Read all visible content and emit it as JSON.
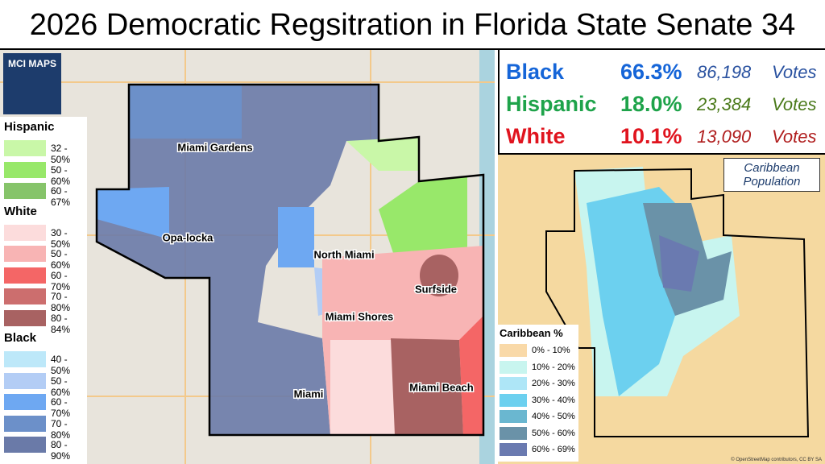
{
  "title": "2026 Democratic Regsitration in Florida State Senate 34",
  "logo": "MCI MAPS",
  "legend": {
    "groups": [
      {
        "name": "Hispanic",
        "items": [
          {
            "label": "32 - 50%",
            "color": "#c9f7a8"
          },
          {
            "label": "50 - 60%",
            "color": "#98e86a"
          },
          {
            "label": "60 - 67%",
            "color": "#86c46a"
          }
        ]
      },
      {
        "name": "White",
        "items": [
          {
            "label": "30 - 50%",
            "color": "#fcdcdc"
          },
          {
            "label": "50 - 60%",
            "color": "#f8b4b4"
          },
          {
            "label": "60 - 70%",
            "color": "#f46666"
          },
          {
            "label": "70 - 80%",
            "color": "#cc6e6e"
          },
          {
            "label": "80 - 84%",
            "color": "#a86262"
          }
        ]
      },
      {
        "name": "Black",
        "items": [
          {
            "label": "40 - 50%",
            "color": "#bde8f9"
          },
          {
            "label": "50 - 60%",
            "color": "#b3cdf5"
          },
          {
            "label": "60 - 70%",
            "color": "#6ea8f2"
          },
          {
            "label": "70 - 80%",
            "color": "#6c90c9"
          },
          {
            "label": "80 - 90%",
            "color": "#6a7aa8"
          }
        ]
      }
    ]
  },
  "stats": [
    {
      "group": "Black",
      "percent": "66.3%",
      "votes": "86,198",
      "unit": "Votes",
      "color": "#1565d8",
      "votes_color": "#2a52a0"
    },
    {
      "group": "Hispanic",
      "percent": "18.0%",
      "votes": "23,384",
      "unit": "Votes",
      "color": "#1ea34a",
      "votes_color": "#4a7a1a"
    },
    {
      "group": "White",
      "percent": "10.1%",
      "votes": "13,090",
      "unit": "Votes",
      "color": "#e0141e",
      "votes_color": "#b01e1e"
    }
  ],
  "cities": [
    "Miami Gardens",
    "Opa-locka",
    "North Miami",
    "Surfside",
    "Miami Shores",
    "Miami",
    "Miami Beach"
  ],
  "inset": {
    "title": "Caribbean Population",
    "legend_title": "Caribbean %",
    "items": [
      {
        "label": "0% - 10%",
        "color": "#f9d9a8"
      },
      {
        "label": "10% - 20%",
        "color": "#c8f5ef"
      },
      {
        "label": "20% - 30%",
        "color": "#aee6f7"
      },
      {
        "label": "30% - 40%",
        "color": "#6cd0ef"
      },
      {
        "label": "40% - 50%",
        "color": "#6ab7d0"
      },
      {
        "label": "50% - 60%",
        "color": "#6a92a8"
      },
      {
        "label": "60% - 69%",
        "color": "#6a7ab0"
      }
    ],
    "attribution": "© OpenStreetMap contributors, CC BY SA"
  }
}
